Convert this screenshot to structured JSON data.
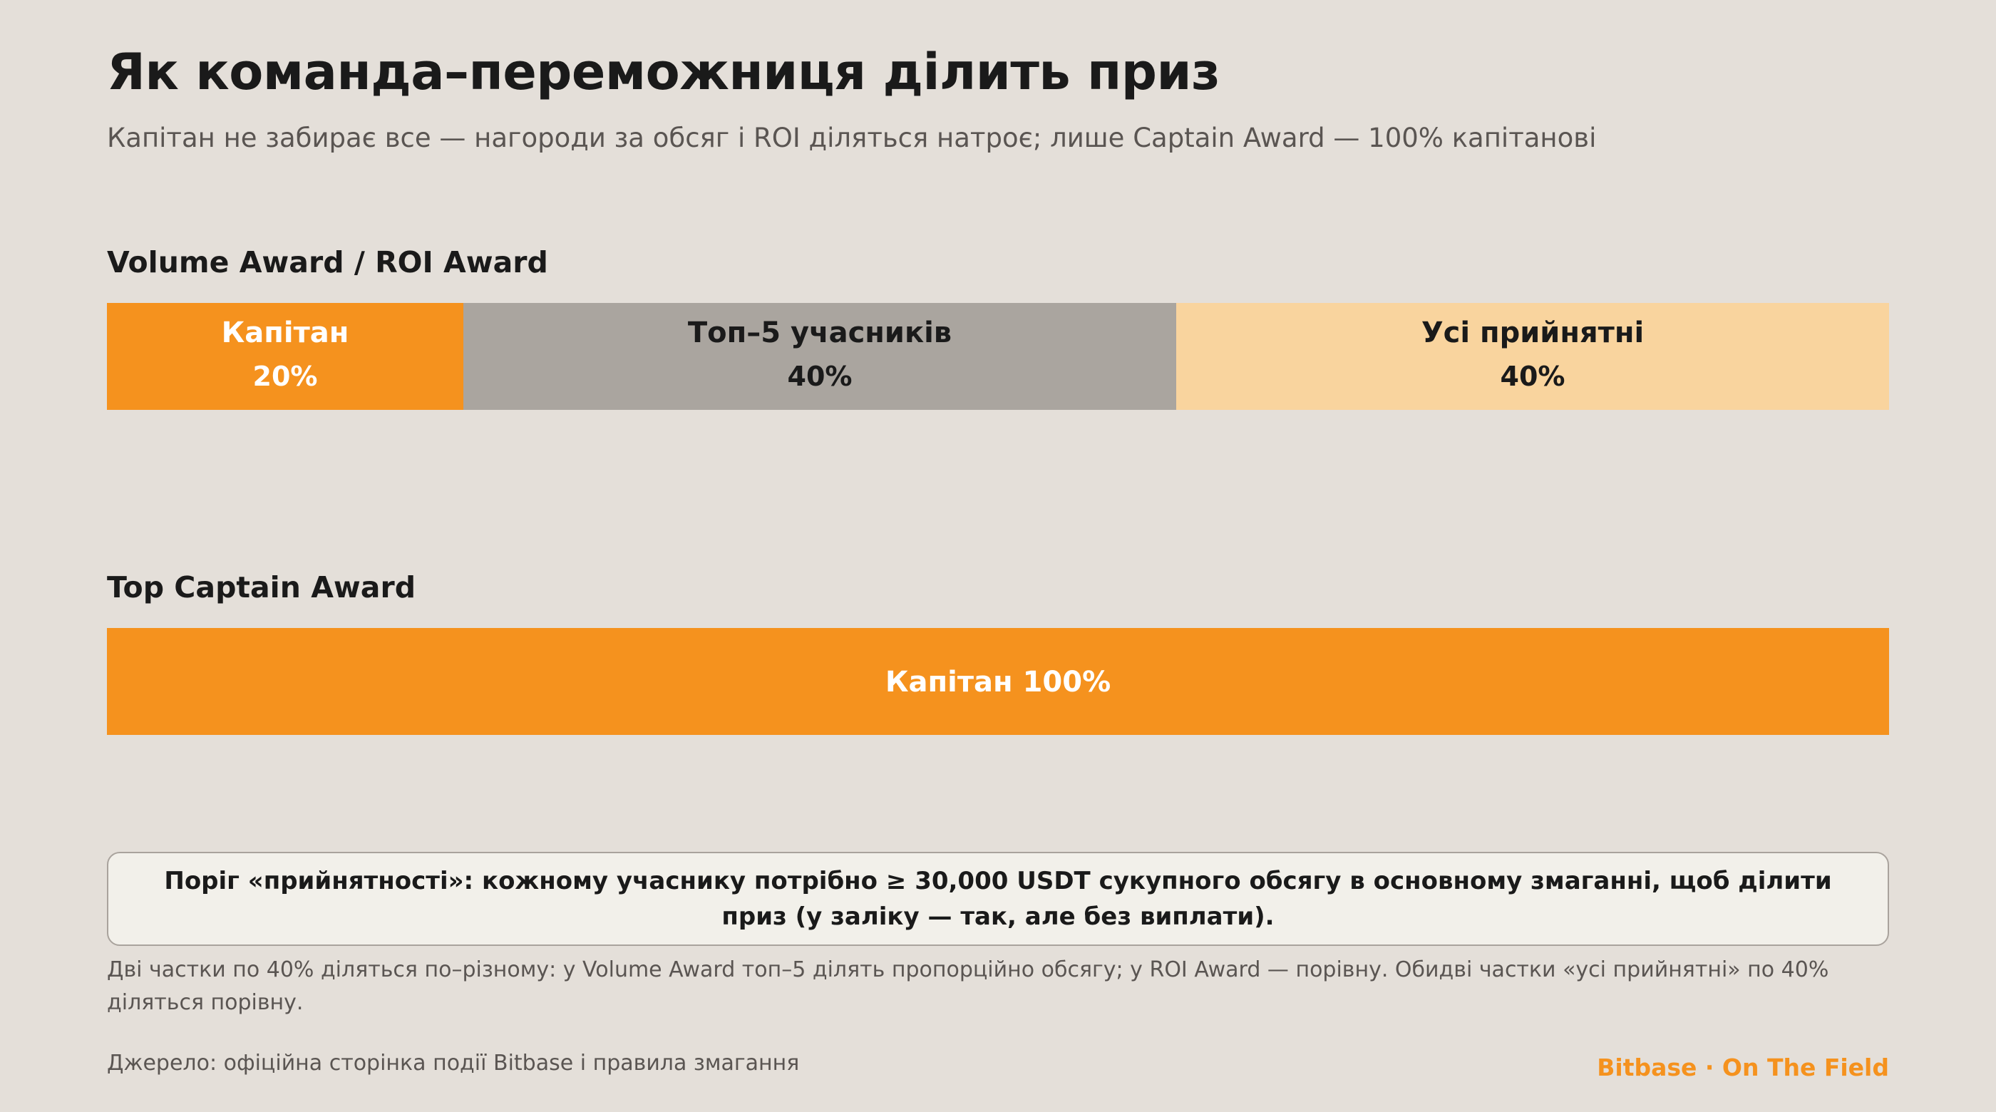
{
  "title": "Як команда–переможниця ділить приз",
  "subtitle": "Капітан не забирає все — нагороди за обсяг і ROI діляться натроє; лише Captain Award — 100% капітанові",
  "chart_data": [
    {
      "type": "bar",
      "orientation": "horizontal-stacked",
      "title": "Volume Award / ROI Award",
      "unit": "%",
      "xlim": [
        0,
        100
      ],
      "segments": [
        {
          "name": "Капітан",
          "value": 20,
          "label": "20%",
          "color": "#f5921e",
          "text_color": "#ffffff"
        },
        {
          "name": "Топ–5 учасників",
          "value": 40,
          "label": "40%",
          "color": "#aaa59f",
          "text_color": "#1a1a1a"
        },
        {
          "name": "Усі прийнятні",
          "value": 40,
          "label": "40%",
          "color": "#f9d49e",
          "text_color": "#1a1a1a"
        }
      ]
    },
    {
      "type": "bar",
      "orientation": "horizontal-stacked",
      "title": "Top Captain Award",
      "unit": "%",
      "xlim": [
        0,
        100
      ],
      "segments": [
        {
          "name": "Капітан",
          "value": 100,
          "label": "100%",
          "color": "#f5921e",
          "text_color": "#ffffff"
        }
      ]
    }
  ],
  "note": "Поріг «прийнятності»: кожному учаснику потрібно ≥ 30,000 USDT сукупного обсягу в основному змаганні, щоб ділити приз (у заліку — так, але без виплати).",
  "explanation": "Дві частки по 40% діляться по–різному: у Volume Award топ–5 ділять пропорційно обсягу; у ROI Award — порівну. Обидві частки «усі прийнятні» по 40% діляться порівну.",
  "source": "Джерело: офіційна сторінка події Bitbase і правила змагання",
  "brand": "Bitbase · On The Field",
  "colors": {
    "background": "#e4dfd9",
    "accent": "#f5921e",
    "grey": "#aaa59f",
    "light_orange": "#f9d49e",
    "muted_text": "#5a5552"
  }
}
